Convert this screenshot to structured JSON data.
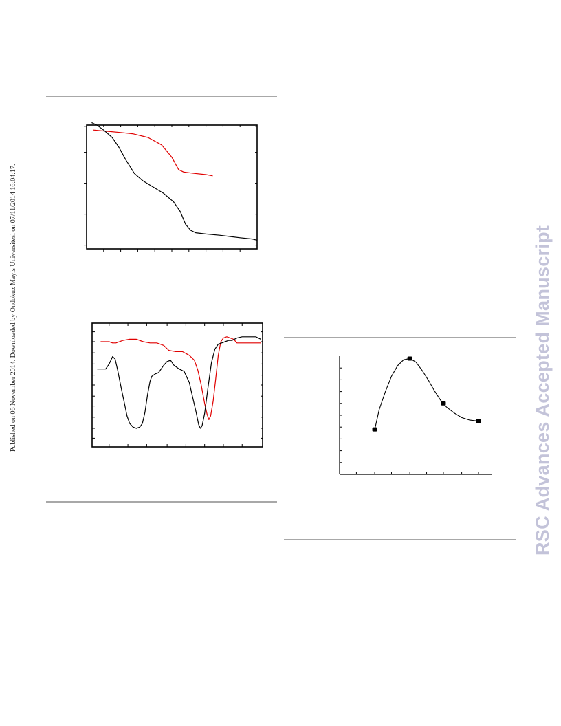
{
  "side_note": "Published on 06 November 2014. Downloaded by Ondokuz Mayis Universitesi on 07/11/2014 16:04:17.",
  "watermark": "RSC Advances Accepted Manuscript",
  "colors": {
    "rule": "#a8a8a8",
    "series_red": "#e00000",
    "series_black": "#000000",
    "watermark": "#c3c3d9"
  },
  "chart_data": [
    {
      "type": "line",
      "xlim": [
        0,
        100
      ],
      "ylim": [
        0,
        100
      ],
      "x_ticks": [
        10,
        20,
        30,
        40,
        50,
        60,
        70,
        80,
        90
      ],
      "y_ticks": [
        3,
        28,
        53,
        78,
        99
      ],
      "series": [
        {
          "color": "#e00000",
          "points": [
            [
              4,
              96
            ],
            [
              12,
              95
            ],
            [
              20,
              94
            ],
            [
              27,
              93
            ],
            [
              36,
              90
            ],
            [
              44,
              84
            ],
            [
              50,
              74
            ],
            [
              54,
              64
            ],
            [
              57,
              62
            ],
            [
              63,
              61
            ],
            [
              70,
              60
            ],
            [
              74,
              59
            ]
          ]
        },
        {
          "color": "#000000",
          "points": [
            [
              3,
              102
            ],
            [
              6,
              100
            ],
            [
              10,
              96
            ],
            [
              15,
              90
            ],
            [
              19,
              82
            ],
            [
              23,
              72
            ],
            [
              28,
              61
            ],
            [
              33,
              55
            ],
            [
              39,
              50
            ],
            [
              45,
              45
            ],
            [
              51,
              38
            ],
            [
              55,
              30
            ],
            [
              58,
              20
            ],
            [
              61,
              15
            ],
            [
              64,
              13
            ],
            [
              70,
              12
            ],
            [
              78,
              11
            ],
            [
              84,
              10
            ],
            [
              90,
              9
            ],
            [
              97,
              8
            ],
            [
              100,
              7
            ]
          ]
        }
      ]
    },
    {
      "type": "line",
      "xlim": [
        0,
        100
      ],
      "ylim": [
        0,
        100
      ],
      "x_ticks": [
        10,
        21,
        32,
        44,
        55,
        66,
        77,
        88
      ],
      "y_ticks": [
        7,
        15,
        24,
        33,
        41,
        50,
        58,
        67,
        76,
        85,
        93
      ],
      "series": [
        {
          "color": "#e00000",
          "points": [
            [
              5,
              85
            ],
            [
              8,
              85
            ],
            [
              10,
              85
            ],
            [
              12,
              84
            ],
            [
              14,
              84
            ],
            [
              18,
              86
            ],
            [
              22,
              87
            ],
            [
              26,
              87
            ],
            [
              30,
              85
            ],
            [
              34,
              84
            ],
            [
              38,
              84
            ],
            [
              42,
              82
            ],
            [
              45,
              78
            ],
            [
              49,
              77
            ],
            [
              53,
              77
            ],
            [
              57,
              74
            ],
            [
              60,
              70
            ],
            [
              62,
              62
            ],
            [
              64,
              50
            ],
            [
              66,
              35
            ],
            [
              67.5,
              26
            ],
            [
              68.5,
              22
            ],
            [
              69.5,
              25
            ],
            [
              71,
              37
            ],
            [
              72.5,
              55
            ],
            [
              74,
              74
            ],
            [
              75.5,
              85
            ],
            [
              77,
              88
            ],
            [
              79,
              89
            ],
            [
              81,
              88
            ],
            [
              83,
              87
            ],
            [
              85,
              84
            ],
            [
              87,
              84
            ],
            [
              89,
              84
            ],
            [
              92,
              84
            ],
            [
              95,
              84
            ],
            [
              99,
              84
            ]
          ]
        },
        {
          "color": "#000000",
          "points": [
            [
              3,
              63
            ],
            [
              6,
              63
            ],
            [
              8,
              63
            ],
            [
              10,
              67
            ],
            [
              12,
              73
            ],
            [
              13.5,
              71
            ],
            [
              15,
              62
            ],
            [
              17,
              48
            ],
            [
              19,
              35
            ],
            [
              20.5,
              25
            ],
            [
              22,
              19
            ],
            [
              24,
              16
            ],
            [
              26,
              15
            ],
            [
              28,
              16
            ],
            [
              29.5,
              19
            ],
            [
              31,
              28
            ],
            [
              32.5,
              42
            ],
            [
              34,
              53
            ],
            [
              35,
              57
            ],
            [
              37,
              59
            ],
            [
              39,
              60
            ],
            [
              42,
              66
            ],
            [
              44,
              69
            ],
            [
              46,
              70
            ],
            [
              48,
              66
            ],
            [
              51,
              63
            ],
            [
              54,
              61
            ],
            [
              57,
              52
            ],
            [
              59,
              40
            ],
            [
              61,
              28
            ],
            [
              62.5,
              18
            ],
            [
              63.5,
              15
            ],
            [
              64.5,
              17
            ],
            [
              66,
              27
            ],
            [
              68,
              48
            ],
            [
              70,
              68
            ],
            [
              72,
              79
            ],
            [
              74,
              83
            ],
            [
              76,
              84
            ],
            [
              78,
              85
            ],
            [
              80,
              86
            ],
            [
              82,
              86
            ],
            [
              85,
              88
            ],
            [
              88,
              89
            ],
            [
              92,
              89
            ],
            [
              96,
              89
            ],
            [
              99,
              87
            ]
          ]
        }
      ]
    },
    {
      "type": "scatter",
      "xlim": [
        0,
        100
      ],
      "ylim": [
        0,
        100
      ],
      "x_ticks": [
        11,
        23,
        34,
        46,
        57,
        68,
        80,
        91
      ],
      "y_ticks": [
        10,
        20,
        30,
        40,
        50,
        60,
        70,
        80,
        90
      ],
      "points": [
        [
          23,
          38
        ],
        [
          46,
          98
        ],
        [
          68,
          60
        ],
        [
          91,
          45
        ]
      ],
      "error": 1.5,
      "fit_curve": [
        [
          23,
          38
        ],
        [
          26,
          55
        ],
        [
          30,
          70
        ],
        [
          34,
          83
        ],
        [
          38,
          92
        ],
        [
          42,
          97
        ],
        [
          46,
          98
        ],
        [
          50,
          95
        ],
        [
          54,
          88
        ],
        [
          58,
          80
        ],
        [
          62,
          71
        ],
        [
          66,
          63
        ],
        [
          70,
          57
        ],
        [
          75,
          52
        ],
        [
          80,
          48
        ],
        [
          85,
          46
        ],
        [
          91,
          45
        ]
      ]
    }
  ]
}
